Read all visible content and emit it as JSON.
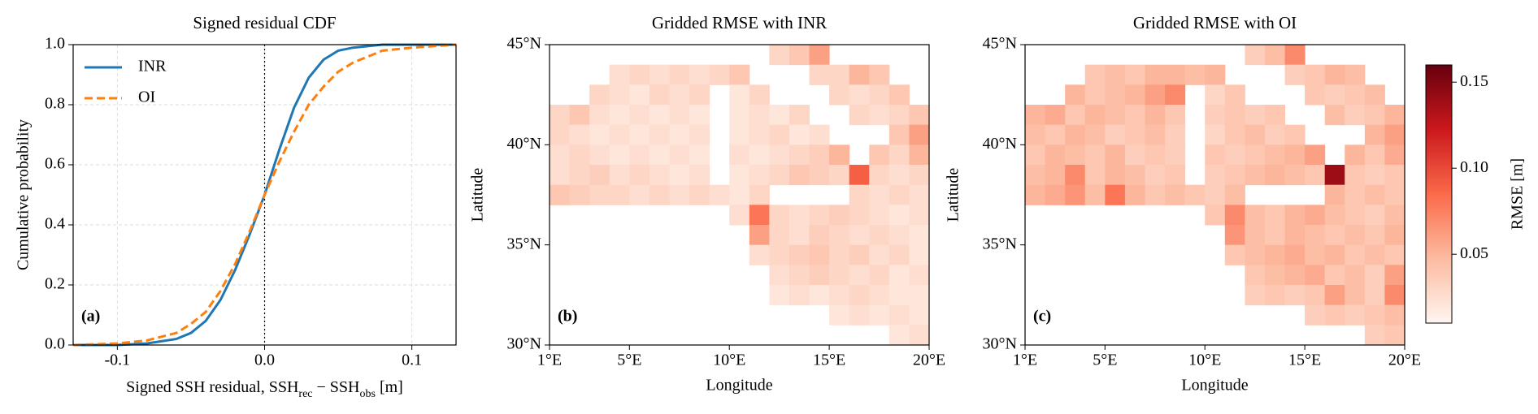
{
  "chart_data": [
    {
      "type": "line",
      "title": "Signed residual CDF",
      "panel_label": "(a)",
      "xlabel": [
        "Signed SSH residual, SSH",
        "rec",
        " − SSH",
        "obs",
        " [m]"
      ],
      "ylabel": "Cumulative probability",
      "x": [
        -0.13,
        -0.1,
        -0.08,
        -0.06,
        -0.05,
        -0.04,
        -0.03,
        -0.02,
        -0.01,
        0,
        0.01,
        0.02,
        0.03,
        0.04,
        0.05,
        0.06,
        0.08,
        0.1,
        0.13
      ],
      "series": [
        {
          "name": "INR",
          "color": "#1f77b4",
          "dash": false,
          "values": [
            0,
            0,
            0.005,
            0.02,
            0.04,
            0.08,
            0.15,
            0.25,
            0.37,
            0.5,
            0.65,
            0.79,
            0.89,
            0.95,
            0.98,
            0.99,
            1.0,
            1.0,
            1.0
          ]
        },
        {
          "name": "OI",
          "color": "#ff7f0e",
          "dash": true,
          "values": [
            0,
            0.005,
            0.015,
            0.04,
            0.07,
            0.11,
            0.18,
            0.27,
            0.38,
            0.5,
            0.61,
            0.71,
            0.8,
            0.86,
            0.91,
            0.94,
            0.98,
            0.99,
            1.0
          ]
        }
      ],
      "reference_x": 0,
      "xlim": [
        -0.13,
        0.13
      ],
      "xticks": [
        -0.1,
        {
          "value": 0,
          "label": "0.0"
        },
        0.1
      ],
      "ylim": [
        0,
        1
      ],
      "yticks": [
        {
          "value": 0,
          "label": "0.0"
        },
        0.2,
        0.4,
        0.6,
        0.8,
        {
          "value": 1,
          "label": "1.0"
        }
      ],
      "grid": true,
      "legend": "upper-left"
    },
    {
      "type": "heatmap",
      "title": "Gridded RMSE with INR",
      "panel_label": "(b)",
      "xlabel": "Longitude",
      "ylabel": "Latitude",
      "xlim": [
        1,
        20
      ],
      "ylim": [
        30,
        45
      ],
      "xticks": [
        {
          "value": 1,
          "label": "1°E"
        },
        {
          "value": 5,
          "label": "5°E"
        },
        {
          "value": 10,
          "label": "10°E"
        },
        {
          "value": 15,
          "label": "15°E"
        },
        {
          "value": 20,
          "label": "20°E"
        }
      ],
      "yticks": [
        {
          "value": 30,
          "label": "30°N"
        },
        {
          "value": 35,
          "label": "35°N"
        },
        {
          "value": 40,
          "label": "40°N"
        },
        {
          "value": 45,
          "label": "45°N"
        }
      ],
      "values": [
        [
          null,
          null,
          null,
          null,
          null,
          null,
          null,
          null,
          null,
          null,
          null,
          0.03,
          0.04,
          0.06,
          null,
          null,
          null,
          null,
          null
        ],
        [
          null,
          null,
          null,
          0.025,
          0.03,
          0.025,
          0.03,
          0.025,
          0.03,
          0.04,
          null,
          null,
          null,
          0.03,
          0.03,
          0.05,
          0.04,
          null,
          null
        ],
        [
          null,
          null,
          0.03,
          0.025,
          0.02,
          0.03,
          0.025,
          0.03,
          null,
          0.02,
          0.03,
          null,
          null,
          null,
          0.03,
          0.025,
          0.03,
          0.04,
          null
        ],
        [
          0.03,
          0.04,
          0.025,
          0.02,
          0.025,
          0.02,
          0.025,
          0.02,
          null,
          0.02,
          0.025,
          0.02,
          0.03,
          null,
          null,
          0.03,
          0.025,
          0.03,
          0.04
        ],
        [
          0.03,
          0.025,
          0.02,
          0.025,
          0.02,
          0.025,
          0.02,
          0.025,
          null,
          0.02,
          0.025,
          0.03,
          0.02,
          0.025,
          null,
          null,
          null,
          0.04,
          0.06
        ],
        [
          0.025,
          0.03,
          0.025,
          0.02,
          0.025,
          0.02,
          0.025,
          0.02,
          null,
          0.025,
          0.02,
          0.025,
          0.03,
          0.035,
          0.05,
          null,
          0.04,
          0.03,
          0.05
        ],
        [
          0.025,
          0.03,
          0.035,
          0.025,
          0.03,
          0.025,
          0.02,
          0.025,
          null,
          0.02,
          0.025,
          0.03,
          0.04,
          0.035,
          0.03,
          0.09,
          0.03,
          0.025,
          0.03
        ],
        [
          0.04,
          0.035,
          0.03,
          0.03,
          0.025,
          0.03,
          0.025,
          0.03,
          0.025,
          0.02,
          0.03,
          null,
          null,
          null,
          null,
          0.03,
          0.025,
          0.03,
          0.025
        ],
        [
          null,
          null,
          null,
          null,
          null,
          null,
          null,
          null,
          null,
          0.025,
          0.08,
          0.03,
          0.025,
          0.03,
          0.035,
          0.03,
          0.025,
          0.02,
          0.025
        ],
        [
          null,
          null,
          null,
          null,
          null,
          null,
          null,
          null,
          null,
          null,
          0.06,
          0.03,
          0.025,
          0.035,
          0.03,
          0.025,
          0.03,
          0.025,
          0.02
        ],
        [
          null,
          null,
          null,
          null,
          null,
          null,
          null,
          null,
          null,
          null,
          0.025,
          0.03,
          0.035,
          0.04,
          0.03,
          0.035,
          0.025,
          0.03,
          0.02
        ],
        [
          null,
          null,
          null,
          null,
          null,
          null,
          null,
          null,
          null,
          null,
          null,
          0.025,
          0.03,
          0.035,
          0.03,
          0.025,
          0.03,
          0.02,
          0.025
        ],
        [
          null,
          null,
          null,
          null,
          null,
          null,
          null,
          null,
          null,
          null,
          null,
          0.02,
          0.025,
          0.02,
          0.025,
          0.03,
          0.025,
          0.02,
          0.02
        ],
        [
          null,
          null,
          null,
          null,
          null,
          null,
          null,
          null,
          null,
          null,
          null,
          null,
          null,
          null,
          0.02,
          0.025,
          0.02,
          0.025,
          0.02
        ],
        [
          null,
          null,
          null,
          null,
          null,
          null,
          null,
          null,
          null,
          null,
          null,
          null,
          null,
          null,
          null,
          null,
          null,
          0.02,
          0.025
        ]
      ]
    },
    {
      "type": "heatmap",
      "title": "Gridded RMSE with OI",
      "panel_label": "(c)",
      "xlabel": "Longitude",
      "ylabel": "Latitude",
      "xlim": [
        1,
        20
      ],
      "ylim": [
        30,
        45
      ],
      "xticks": [
        {
          "value": 1,
          "label": "1°E"
        },
        {
          "value": 5,
          "label": "5°E"
        },
        {
          "value": 10,
          "label": "10°E"
        },
        {
          "value": 15,
          "label": "15°E"
        },
        {
          "value": 20,
          "label": "20°E"
        }
      ],
      "yticks": [
        {
          "value": 30,
          "label": "30°N"
        },
        {
          "value": 35,
          "label": "35°N"
        },
        {
          "value": 40,
          "label": "40°N"
        },
        {
          "value": 45,
          "label": "45°N"
        }
      ],
      "values": [
        [
          null,
          null,
          null,
          null,
          null,
          null,
          null,
          null,
          null,
          null,
          null,
          0.035,
          0.045,
          0.07,
          null,
          null,
          null,
          null,
          null
        ],
        [
          null,
          null,
          null,
          0.04,
          0.045,
          0.04,
          0.05,
          0.05,
          0.045,
          0.05,
          null,
          null,
          null,
          0.035,
          0.04,
          0.05,
          0.045,
          null,
          null
        ],
        [
          null,
          null,
          0.05,
          0.04,
          0.045,
          0.05,
          0.06,
          0.07,
          null,
          0.03,
          0.04,
          null,
          null,
          null,
          0.04,
          0.035,
          0.04,
          0.045,
          null
        ],
        [
          0.05,
          0.055,
          0.04,
          0.05,
          0.045,
          0.04,
          0.05,
          0.04,
          null,
          0.035,
          0.04,
          0.035,
          0.04,
          null,
          null,
          0.045,
          0.035,
          0.04,
          0.05
        ],
        [
          0.045,
          0.04,
          0.05,
          0.045,
          0.035,
          0.04,
          0.045,
          0.035,
          null,
          0.03,
          0.04,
          0.045,
          0.035,
          0.04,
          null,
          null,
          null,
          0.05,
          0.06
        ],
        [
          0.04,
          0.05,
          0.045,
          0.04,
          0.05,
          0.035,
          0.04,
          0.035,
          null,
          0.04,
          0.035,
          0.04,
          0.045,
          0.05,
          0.06,
          null,
          0.05,
          0.04,
          0.055
        ],
        [
          0.045,
          0.05,
          0.07,
          0.04,
          0.05,
          0.045,
          0.035,
          0.04,
          null,
          0.035,
          0.04,
          0.045,
          0.05,
          0.045,
          0.04,
          0.14,
          0.04,
          0.035,
          0.04
        ],
        [
          0.05,
          0.055,
          0.065,
          0.045,
          0.08,
          0.05,
          0.04,
          0.045,
          0.04,
          0.035,
          0.045,
          null,
          null,
          null,
          null,
          0.05,
          0.04,
          0.045,
          0.04
        ],
        [
          null,
          null,
          null,
          null,
          null,
          null,
          null,
          null,
          null,
          0.04,
          0.07,
          0.045,
          0.04,
          0.05,
          0.055,
          0.045,
          0.04,
          0.035,
          0.045
        ],
        [
          null,
          null,
          null,
          null,
          null,
          null,
          null,
          null,
          null,
          null,
          0.065,
          0.045,
          0.04,
          0.05,
          0.045,
          0.04,
          0.045,
          0.04,
          0.05
        ],
        [
          null,
          null,
          null,
          null,
          null,
          null,
          null,
          null,
          null,
          null,
          0.04,
          0.045,
          0.05,
          0.055,
          0.045,
          0.05,
          0.04,
          0.045,
          0.04
        ],
        [
          null,
          null,
          null,
          null,
          null,
          null,
          null,
          null,
          null,
          null,
          null,
          0.04,
          0.045,
          0.05,
          0.055,
          0.04,
          0.045,
          0.035,
          0.06
        ],
        [
          null,
          null,
          null,
          null,
          null,
          null,
          null,
          null,
          null,
          null,
          null,
          0.035,
          0.04,
          0.035,
          0.04,
          0.06,
          0.045,
          0.035,
          0.07
        ],
        [
          null,
          null,
          null,
          null,
          null,
          null,
          null,
          null,
          null,
          null,
          null,
          null,
          null,
          null,
          0.035,
          0.04,
          0.035,
          0.04,
          0.045
        ],
        [
          null,
          null,
          null,
          null,
          null,
          null,
          null,
          null,
          null,
          null,
          null,
          null,
          null,
          null,
          null,
          null,
          null,
          0.035,
          0.04
        ]
      ],
      "colorbar": {
        "label": "RMSE [m]",
        "lim": [
          0.01,
          0.16
        ],
        "ticks": [
          0.05,
          {
            "value": 0.1,
            "label": "0.10"
          },
          0.15
        ]
      }
    }
  ]
}
